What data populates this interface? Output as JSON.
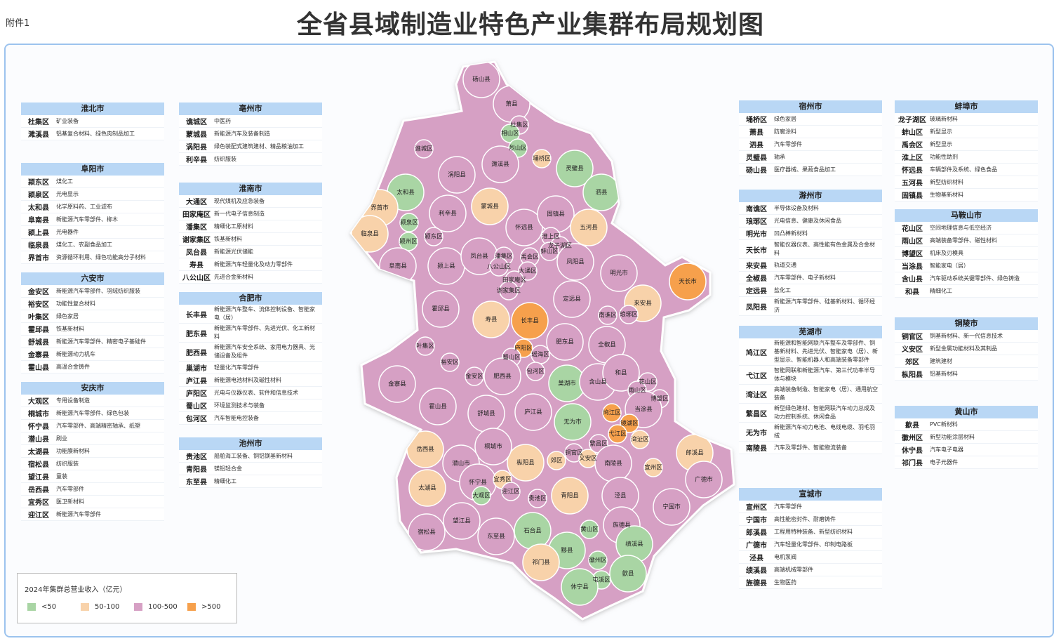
{
  "header": {
    "attachment": "附件1",
    "title": "全省县域制造业特色产业集群布局规划图"
  },
  "legend": {
    "title": "2024年集群总营业收入（亿元）",
    "items": [
      {
        "label": "<50",
        "color": "#a9d5a4"
      },
      {
        "label": "50-100",
        "color": "#f8d2aa"
      },
      {
        "label": "100-500",
        "color": "#d6a0c4"
      },
      {
        "label": ">500",
        "color": "#f6a04c"
      }
    ]
  },
  "panels": [
    {
      "city": "淮北市",
      "rows": [
        {
          "county": "杜集区",
          "industry": "矿业装备"
        },
        {
          "county": "濉溪县",
          "industry": "铝基复合材料、绿色肉制品加工"
        }
      ]
    },
    {
      "city": "阜阳市",
      "rows": [
        {
          "county": "颍东区",
          "industry": "煤化工"
        },
        {
          "county": "颍泉区",
          "industry": "光电显示"
        },
        {
          "county": "太和县",
          "industry": "化学原料药、工业滤布"
        },
        {
          "county": "阜南县",
          "industry": "新能源汽车零部件、柳木"
        },
        {
          "county": "颍上县",
          "industry": "光电器件"
        },
        {
          "county": "临泉县",
          "industry": "煤化工、农副食品加工"
        },
        {
          "county": "界首市",
          "industry": "资源循环利用、绿色功能高分子材料"
        }
      ]
    },
    {
      "city": "六安市",
      "rows": [
        {
          "county": "金安区",
          "industry": "新能源汽车零部件、羽绒纺织服装"
        },
        {
          "county": "裕安区",
          "industry": "功能性复合材料"
        },
        {
          "county": "叶集区",
          "industry": "绿色家居"
        },
        {
          "county": "霍邱县",
          "industry": "铁基新材料"
        },
        {
          "county": "舒城县",
          "industry": "新能源汽车零部件、精密电子基础件"
        },
        {
          "county": "金寨县",
          "industry": "新能源动力机车"
        },
        {
          "county": "霍山县",
          "industry": "高温合金铸件"
        }
      ]
    },
    {
      "city": "安庆市",
      "rows": [
        {
          "county": "大观区",
          "industry": "专用设备制造"
        },
        {
          "county": "桐城市",
          "industry": "新能源汽车零部件、绿色包装"
        },
        {
          "county": "怀宁县",
          "industry": "汽车零部件、高端精密轴承、纸塑"
        },
        {
          "county": "潜山县",
          "industry": "刷业"
        },
        {
          "county": "太湖县",
          "industry": "功能膜新材料"
        },
        {
          "county": "宿松县",
          "industry": "纺织服装"
        },
        {
          "county": "望江县",
          "industry": "童装"
        },
        {
          "county": "岳西县",
          "industry": "汽车零部件"
        },
        {
          "county": "宜秀区",
          "industry": "医卫新材料"
        },
        {
          "county": "迎江区",
          "industry": "新能源汽车零部件"
        }
      ]
    },
    {
      "city": "亳州市",
      "rows": [
        {
          "county": "谯城区",
          "industry": "中医药"
        },
        {
          "county": "蒙城县",
          "industry": "新能源汽车及装备制造"
        },
        {
          "county": "涡阳县",
          "industry": "绿色装配式建筑建材、精品粮油加工"
        },
        {
          "county": "利辛县",
          "industry": "纺织服装"
        }
      ]
    },
    {
      "city": "淮南市",
      "rows": [
        {
          "county": "大通区",
          "industry": "现代煤机及应急装备"
        },
        {
          "county": "田家庵区",
          "industry": "新一代电子信息制造"
        },
        {
          "county": "潘集区",
          "industry": "精细化工原材料"
        },
        {
          "county": "谢家集区",
          "industry": "铁基新材料"
        },
        {
          "county": "凤台县",
          "industry": "新能源光伏储能"
        },
        {
          "county": "寿县",
          "industry": "新能源汽车轻量化及动力零部件"
        },
        {
          "county": "八公山区",
          "industry": "先进合金新材料"
        }
      ]
    },
    {
      "city": "合肥市",
      "rows": [
        {
          "county": "长丰县",
          "industry": "新能源汽车整车、流体控制设备、智能家电（居）"
        },
        {
          "county": "肥东县",
          "industry": "新能源汽车零部件、先进光伏、化工新材料"
        },
        {
          "county": "肥西县",
          "industry": "新能源汽车安全系统、家用电力器具、光储设备及组件"
        },
        {
          "county": "巢湖市",
          "industry": "轻量化汽车零部件"
        },
        {
          "county": "庐江县",
          "industry": "新能源电池材料及磁性材料"
        },
        {
          "county": "庐阳区",
          "industry": "光电与仪器仪表、软件和信息技术"
        },
        {
          "county": "蜀山区",
          "industry": "环境监测技术与装备"
        },
        {
          "county": "包河区",
          "industry": "汽车智能电控装备"
        }
      ]
    },
    {
      "city": "池州市",
      "rows": [
        {
          "county": "贵池区",
          "industry": "船舶海工装备、铜铝镁基新材料"
        },
        {
          "county": "青阳县",
          "industry": "镁铝轻合金"
        },
        {
          "county": "东至县",
          "industry": "精细化工"
        }
      ]
    },
    {
      "city": "宿州市",
      "rows": [
        {
          "county": "埇桥区",
          "industry": "绿色家居"
        },
        {
          "county": "萧县",
          "industry": "防腐涂料"
        },
        {
          "county": "泗县",
          "industry": "汽车零部件"
        },
        {
          "county": "灵璧县",
          "industry": "轴承"
        },
        {
          "county": "砀山县",
          "industry": "医疗器械、果蔬食品加工"
        }
      ]
    },
    {
      "city": "滁州市",
      "rows": [
        {
          "county": "南谯区",
          "industry": "半导体设备及材料"
        },
        {
          "county": "琅琊区",
          "industry": "光电信息、健康及休闲食品"
        },
        {
          "county": "明光市",
          "industry": "凹凸棒新材料"
        },
        {
          "county": "天长市",
          "industry": "智能仪器仪表、高性能有色金属及合金材料"
        },
        {
          "county": "来安县",
          "industry": "轨道交通"
        },
        {
          "county": "全椒县",
          "industry": "汽车零部件、电子新材料"
        },
        {
          "county": "定远县",
          "industry": "盐化工"
        },
        {
          "county": "凤阳县",
          "industry": "新能源汽车零部件、硅基新材料、循环经济"
        }
      ]
    },
    {
      "city": "芜湖市",
      "rows": [
        {
          "county": "鸠江区",
          "industry": "新能源和智能网联汽车整车及零部件、铜基新材料、先进光伏、智能家电（居）、新型显示、智能机器人和高端装备零部件"
        },
        {
          "county": "弋江区",
          "industry": "智能网联和新能源汽车、第三代功率半导体与模块"
        },
        {
          "county": "湾沚区",
          "industry": "高端装备制造、智能家电（居）、通用航空装备"
        },
        {
          "county": "繁昌区",
          "industry": "新型绿色建材、智能网联汽车动力总成及动力控制系统、休闲食品"
        },
        {
          "county": "无为市",
          "industry": "新能源汽车动力电池、电线电缆、羽毛羽绒"
        },
        {
          "county": "南陵县",
          "industry": "汽车及零部件、智能物流装备"
        }
      ]
    },
    {
      "city": "宣城市",
      "rows": [
        {
          "county": "宣州区",
          "industry": "汽车零部件"
        },
        {
          "county": "宁国市",
          "industry": "高性能密封件、耐磨铸件"
        },
        {
          "county": "郎溪县",
          "industry": "工程用特种装备、新型纺织材料"
        },
        {
          "county": "广德市",
          "industry": "汽车轻量化零部件、印制电路板"
        },
        {
          "county": "泾县",
          "industry": "电机泵阀"
        },
        {
          "county": "绩溪县",
          "industry": "高端机械零部件"
        },
        {
          "county": "旌德县",
          "industry": "生物医药"
        }
      ]
    },
    {
      "city": "蚌埠市",
      "rows": [
        {
          "county": "龙子湖区",
          "industry": "玻璃新材料"
        },
        {
          "county": "蚌山区",
          "industry": "新型显示"
        },
        {
          "county": "禹会区",
          "industry": "新型显示"
        },
        {
          "county": "淮上区",
          "industry": "功能性助剂"
        },
        {
          "county": "怀远县",
          "industry": "车辆部件及系统、绿色食品"
        },
        {
          "county": "五河县",
          "industry": "新型纺织材料"
        },
        {
          "county": "固镇县",
          "industry": "生物基新材料"
        }
      ]
    },
    {
      "city": "马鞍山市",
      "rows": [
        {
          "county": "花山区",
          "industry": "空间地理信息与低空经济"
        },
        {
          "county": "雨山区",
          "industry": "高端装备零部件、磁性材料"
        },
        {
          "county": "博望区",
          "industry": "机床及刃模具"
        },
        {
          "county": "当涂县",
          "industry": "智能家电（居）"
        },
        {
          "county": "含山县",
          "industry": "汽车驱动系统关键零部件、绿色铸造"
        },
        {
          "county": "和县",
          "industry": "精细化工"
        }
      ]
    },
    {
      "city": "铜陵市",
      "rows": [
        {
          "county": "铜官区",
          "industry": "铜基新材料、新一代信息技术"
        },
        {
          "county": "义安区",
          "industry": "新型金属功能材料及其制品"
        },
        {
          "county": "郊区",
          "industry": "建筑建材"
        },
        {
          "county": "枞阳县",
          "industry": "铝基新材料"
        }
      ]
    },
    {
      "city": "黄山市",
      "rows": [
        {
          "county": "歙县",
          "industry": "PVC新材料"
        },
        {
          "county": "徽州区",
          "industry": "新型功能涂层材料"
        },
        {
          "county": "休宁县",
          "industry": "汽车电子电器"
        },
        {
          "county": "祁门县",
          "industry": "电子元器件"
        }
      ]
    }
  ],
  "map": {
    "counties": [
      {
        "name": "砀山县",
        "class": 2
      },
      {
        "name": "萧县",
        "class": 2
      },
      {
        "name": "杜集区",
        "class": 2
      },
      {
        "name": "相山区",
        "class": 0
      },
      {
        "name": "烈山区",
        "class": 0
      },
      {
        "name": "濉溪县",
        "class": 2
      },
      {
        "name": "埇桥区",
        "class": 1
      },
      {
        "name": "灵璧县",
        "class": 0
      },
      {
        "name": "泗县",
        "class": 0
      },
      {
        "name": "谯城区",
        "class": 2
      },
      {
        "name": "涡阳县",
        "class": 2
      },
      {
        "name": "蒙城县",
        "class": 1
      },
      {
        "name": "太和县",
        "class": 0
      },
      {
        "name": "界首市",
        "class": 1
      },
      {
        "name": "利辛县",
        "class": 2
      },
      {
        "name": "临泉县",
        "class": 1
      },
      {
        "name": "颍泉区",
        "class": 0
      },
      {
        "name": "颍州区",
        "class": 0
      },
      {
        "name": "颍东区",
        "class": 2
      },
      {
        "name": "阜南县",
        "class": 2
      },
      {
        "name": "颍上县",
        "class": 2
      },
      {
        "name": "怀远县",
        "class": 2
      },
      {
        "name": "固镇县",
        "class": 2
      },
      {
        "name": "五河县",
        "class": 1
      },
      {
        "name": "淮上区",
        "class": 2
      },
      {
        "name": "龙子湖区",
        "class": 2
      },
      {
        "name": "蚌山区",
        "class": 2
      },
      {
        "name": "禹会区",
        "class": 2
      },
      {
        "name": "凤台县",
        "class": 2
      },
      {
        "name": "潘集区",
        "class": 2
      },
      {
        "name": "八公山区",
        "class": 2
      },
      {
        "name": "大通区",
        "class": 2
      },
      {
        "name": "田家庵区",
        "class": 2
      },
      {
        "name": "谢家集区",
        "class": 2
      },
      {
        "name": "凤阳县",
        "class": 2
      },
      {
        "name": "明光市",
        "class": 2
      },
      {
        "name": "天长市",
        "class": 3
      },
      {
        "name": "定远县",
        "class": 2
      },
      {
        "name": "来安县",
        "class": 1
      },
      {
        "name": "南谯区",
        "class": 2
      },
      {
        "name": "琅琊区",
        "class": 2
      },
      {
        "name": "寿县",
        "class": 1
      },
      {
        "name": "长丰县",
        "class": 3
      },
      {
        "name": "霍邱县",
        "class": 2
      },
      {
        "name": "全椒县",
        "class": 2
      },
      {
        "name": "肥东县",
        "class": 2
      },
      {
        "name": "庐阳区",
        "class": 3
      },
      {
        "name": "瑶海区",
        "class": 2
      },
      {
        "name": "蜀山区",
        "class": 2
      },
      {
        "name": "包河区",
        "class": 2
      },
      {
        "name": "叶集区",
        "class": 2
      },
      {
        "name": "裕安区",
        "class": 2
      },
      {
        "name": "金安区",
        "class": 2
      },
      {
        "name": "肥西县",
        "class": 2
      },
      {
        "name": "巢湖市",
        "class": 0
      },
      {
        "name": "含山县",
        "class": 2
      },
      {
        "name": "和县",
        "class": 2
      },
      {
        "name": "花山区",
        "class": 2
      },
      {
        "name": "雨山区",
        "class": 2
      },
      {
        "name": "博望区",
        "class": 2
      },
      {
        "name": "当涂县",
        "class": 2
      },
      {
        "name": "金寨县",
        "class": 2
      },
      {
        "name": "霍山县",
        "class": 2
      },
      {
        "name": "舒城县",
        "class": 2
      },
      {
        "name": "庐江县",
        "class": 2
      },
      {
        "name": "无为市",
        "class": 0
      },
      {
        "name": "鸠江区",
        "class": 3
      },
      {
        "name": "镜湖区",
        "class": 3
      },
      {
        "name": "弋江区",
        "class": 3
      },
      {
        "name": "湾沚区",
        "class": 1
      },
      {
        "name": "枞阳县",
        "class": 1
      },
      {
        "name": "桐城市",
        "class": 2
      },
      {
        "name": "铜官区",
        "class": 2
      },
      {
        "name": "义安区",
        "class": 1
      },
      {
        "name": "郊区",
        "class": 1
      },
      {
        "name": "繁昌区",
        "class": 2
      },
      {
        "name": "南陵县",
        "class": 2
      },
      {
        "name": "郎溪县",
        "class": 1
      },
      {
        "name": "宣州区",
        "class": 1
      },
      {
        "name": "广德市",
        "class": 2
      },
      {
        "name": "岳西县",
        "class": 1
      },
      {
        "name": "潜山市",
        "class": 2
      },
      {
        "name": "怀宁县",
        "class": 2
      },
      {
        "name": "宜秀区",
        "class": 1
      },
      {
        "name": "大观区",
        "class": 0
      },
      {
        "name": "迎江区",
        "class": 2
      },
      {
        "name": "太湖县",
        "class": 1
      },
      {
        "name": "贵池区",
        "class": 2
      },
      {
        "name": "青阳县",
        "class": 1
      },
      {
        "name": "泾县",
        "class": 2
      },
      {
        "name": "宁国市",
        "class": 2
      },
      {
        "name": "宿松县",
        "class": 2
      },
      {
        "name": "望江县",
        "class": 2
      },
      {
        "name": "东至县",
        "class": 2
      },
      {
        "name": "石台县",
        "class": 0
      },
      {
        "name": "黄山区",
        "class": 0
      },
      {
        "name": "旌德县",
        "class": 2
      },
      {
        "name": "绩溪县",
        "class": 0
      },
      {
        "name": "黟县",
        "class": 0
      },
      {
        "name": "祁门县",
        "class": 1
      },
      {
        "name": "徽州区",
        "class": 0
      },
      {
        "name": "歙县",
        "class": 0
      },
      {
        "name": "屯溪区",
        "class": 0
      },
      {
        "name": "休宁县",
        "class": 0
      }
    ]
  }
}
